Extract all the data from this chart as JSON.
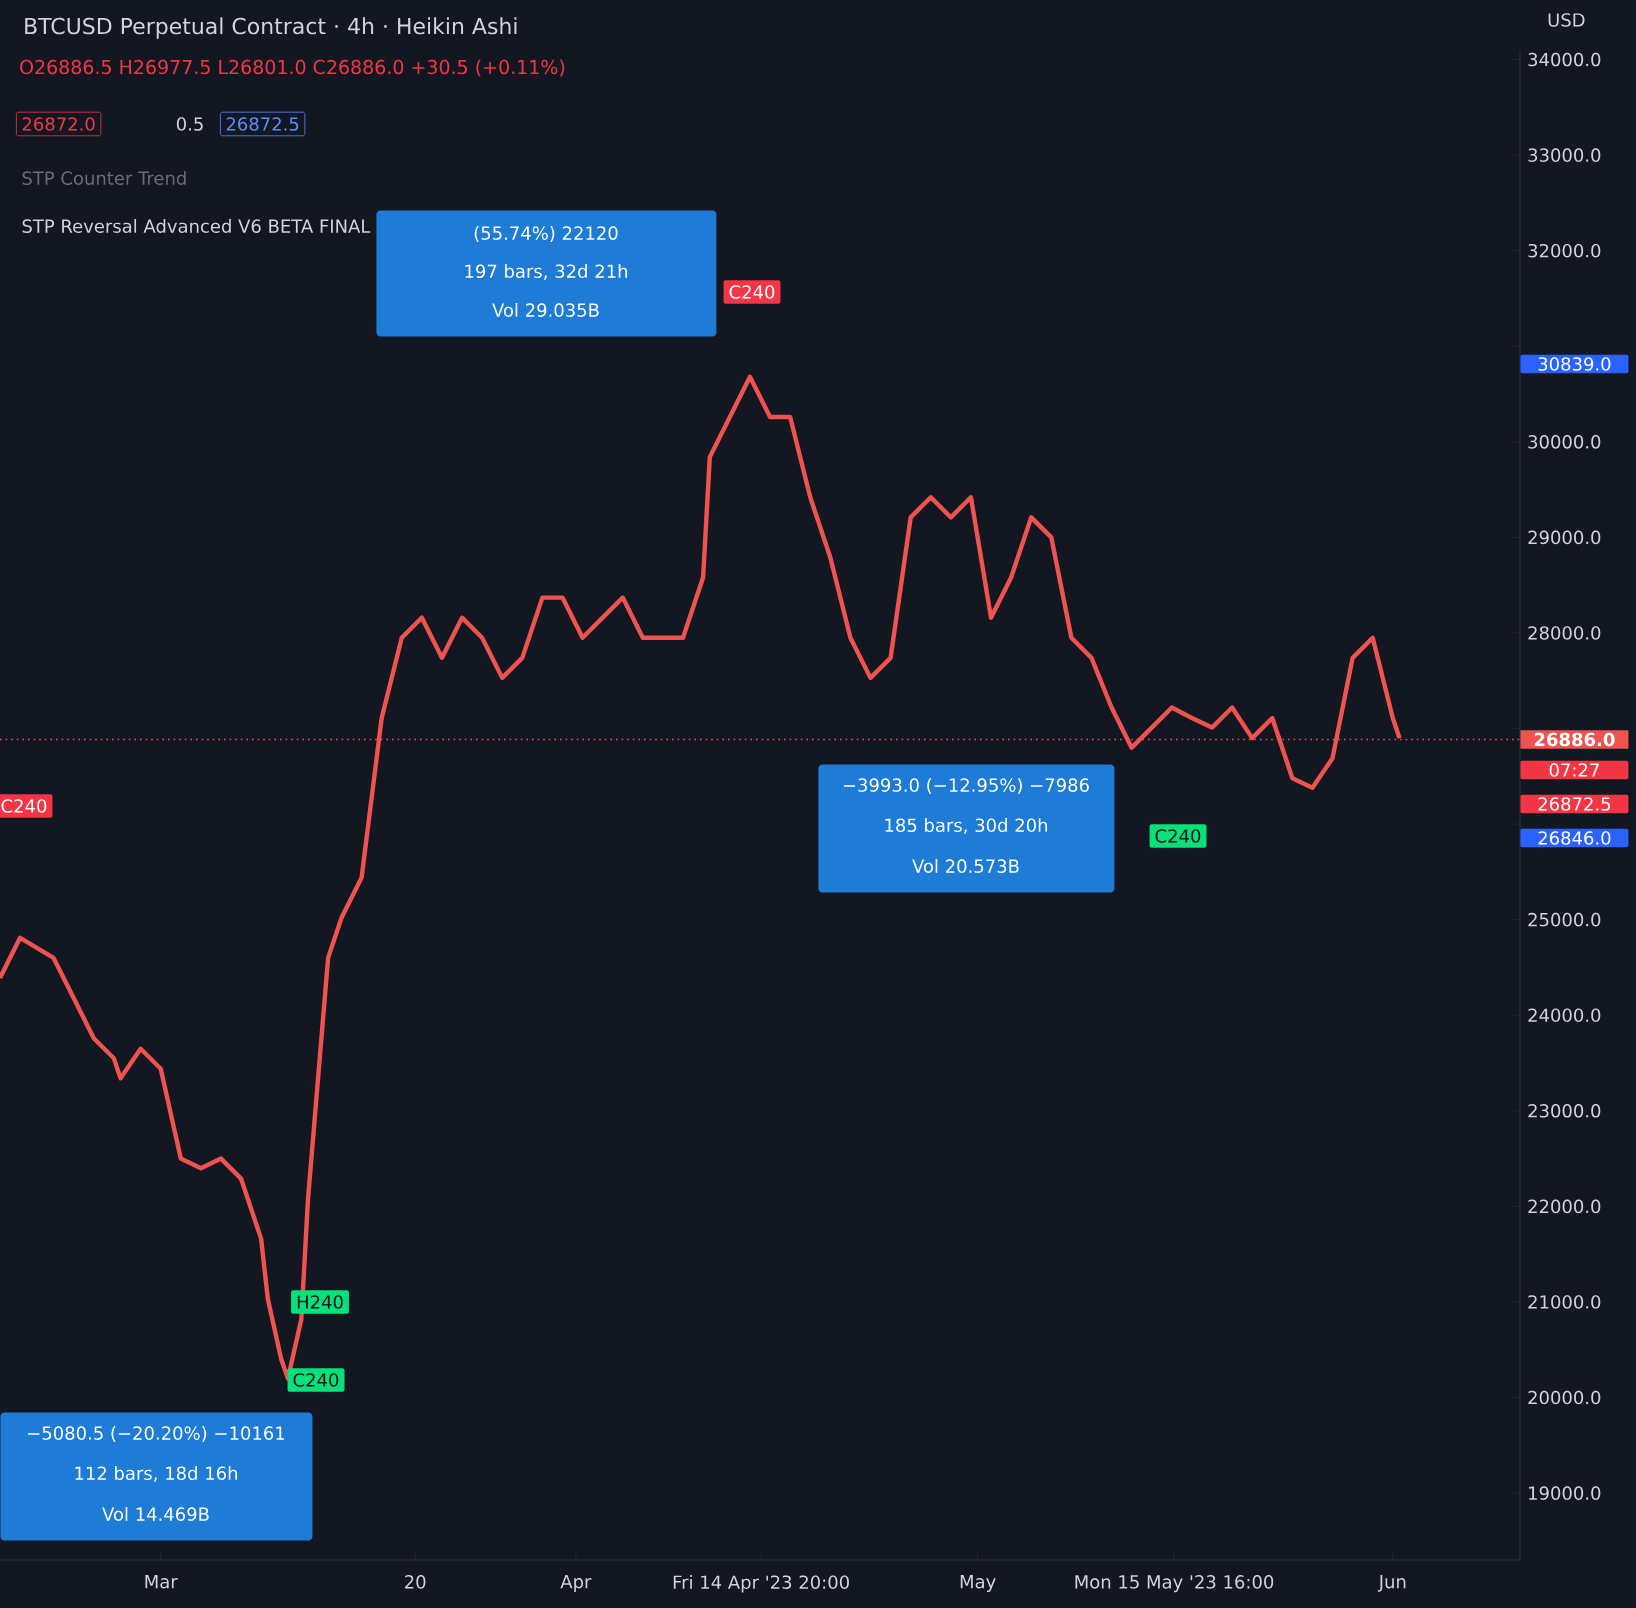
{
  "chart_data": {
    "type": "line",
    "title": "BTCUSD Perpetual Contract · 4h · Heikin Ashi",
    "subtitle": "O26886.5 H26977.5 L26801.0 C26886.0 +30.5 (+0.11%)",
    "ylabel": "USD",
    "x": [
      "2023-02-17T00:00",
      "2023-02-18T12:00",
      "2023-02-21T00:00",
      "2023-02-22T12:00",
      "2023-02-24T00:00",
      "2023-02-25T12:00",
      "2023-02-26T00:00",
      "2023-02-27T12:00",
      "2023-03-01T00:00",
      "2023-03-02T12:00",
      "2023-03-04T00:00",
      "2023-03-05T12:00",
      "2023-03-07T00:00",
      "2023-03-07T12:00",
      "2023-03-08T12:00",
      "2023-03-09T00:00",
      "2023-03-10T00:00",
      "2023-03-10T12:00",
      "2023-03-11T12:00",
      "2023-03-12T00:00",
      "2023-03-13T00:00",
      "2023-03-13T12:00",
      "2023-03-14T12:00",
      "2023-03-16T00:00",
      "2023-03-17T12:00",
      "2023-03-19T00:00",
      "2023-03-20T12:00",
      "2023-03-22T00:00",
      "2023-03-23T12:00",
      "2023-03-25T00:00",
      "2023-03-26T12:00",
      "2023-03-28T00:00",
      "2023-03-29T12:00",
      "2023-03-31T00:00",
      "2023-04-01T12:00",
      "2023-04-03T00:00",
      "2023-04-04T12:00",
      "2023-04-06T00:00",
      "2023-04-07T12:00",
      "2023-04-09T00:00",
      "2023-04-10T12:00",
      "2023-04-11T00:00",
      "2023-04-12T12:00",
      "2023-04-14T00:00",
      "2023-04-15T12:00",
      "2023-04-17T00:00",
      "2023-04-18T12:00",
      "2023-04-20T00:00",
      "2023-04-21T12:00",
      "2023-04-23T00:00",
      "2023-04-24T12:00",
      "2023-04-26T00:00",
      "2023-04-27T12:00",
      "2023-04-29T00:00",
      "2023-04-30T12:00",
      "2023-05-02T00:00",
      "2023-05-03T12:00",
      "2023-05-05T00:00",
      "2023-05-06T12:00",
      "2023-05-08T00:00",
      "2023-05-09T12:00",
      "2023-05-11T00:00",
      "2023-05-12T12:00",
      "2023-05-14T00:00",
      "2023-05-15T12:00",
      "2023-05-17T00:00",
      "2023-05-18T12:00",
      "2023-05-20T00:00",
      "2023-05-21T12:00",
      "2023-05-23T00:00",
      "2023-05-24T12:00",
      "2023-05-26T00:00",
      "2023-05-27T12:00",
      "2023-05-29T00:00",
      "2023-05-30T12:00",
      "2023-06-01T00:00",
      "2023-06-01T12:00"
    ],
    "series": [
      {
        "color": "#ef5350",
        "values": [
          24390,
          24810,
          24600,
          24180,
          23760,
          23550,
          23340,
          23650,
          23440,
          22500,
          22400,
          22500,
          22290,
          22080,
          21660,
          21030,
          20400,
          20200,
          20820,
          22080,
          23760,
          24600,
          25020,
          25440,
          27110,
          27950,
          28160,
          27740,
          28160,
          27950,
          27530,
          27740,
          28370,
          28370,
          27950,
          28160,
          28370,
          27950,
          27950,
          27950,
          28580,
          29840,
          30260,
          30680,
          30260,
          30260,
          29420,
          28790,
          27950,
          27530,
          27740,
          29210,
          29420,
          29210,
          29420,
          28160,
          28580,
          29210,
          29000,
          27950,
          27740,
          27220,
          26800,
          27010,
          27220,
          27110,
          27010,
          27220,
          26900,
          27110,
          26480,
          26380,
          26690,
          27740,
          27950,
          27110,
          26900
        ]
      }
    ],
    "xlim": [
      "2023-02-17T00:00",
      "2023-06-10T12:00"
    ],
    "xticks": [
      {
        "value": "2023-03-01T00:00",
        "label": "Mar"
      },
      {
        "value": "2023-03-20T00:00",
        "label": "20"
      },
      {
        "value": "2023-04-01T00:00",
        "label": "Apr"
      },
      {
        "value": "2023-04-14T20:00",
        "label": "Fri 14 Apr '23  20:00"
      },
      {
        "value": "2023-05-01T00:00",
        "label": "May"
      },
      {
        "value": "2023-05-15T16:00",
        "label": "Mon 15 May '23  16:00"
      },
      {
        "value": "2023-06-01T00:00",
        "label": "Jun"
      }
    ],
    "ylim": [
      18300,
      34100
    ],
    "yticks": [
      {
        "value": 19000,
        "label": "19000.0"
      },
      {
        "value": 20000,
        "label": "20000.0"
      },
      {
        "value": 21000,
        "label": "21000.0"
      },
      {
        "value": 22000,
        "label": "22000.0"
      },
      {
        "value": 23000,
        "label": "23000.0"
      },
      {
        "value": 24000,
        "label": "24000.0"
      },
      {
        "value": 25000,
        "label": "25000.0"
      },
      {
        "value": 26000,
        "label": null
      },
      {
        "value": 27000,
        "label": null
      },
      {
        "value": 28000,
        "label": "28000.0"
      },
      {
        "value": 29000,
        "label": "29000.0"
      },
      {
        "value": 30000,
        "label": "30000.0"
      },
      {
        "value": 31000,
        "label": null
      },
      {
        "value": 32000,
        "label": "32000.0"
      },
      {
        "value": 33000,
        "label": "33000.0"
      },
      {
        "value": 34000,
        "label": "34000.0"
      }
    ],
    "ref_lines": [
      {
        "axis": "y",
        "value": 26886.0,
        "label": "26886.0",
        "color": "#ef5350",
        "line_style": "dotted"
      }
    ],
    "marker": "none",
    "line_style": "solid",
    "grid": false,
    "annotations": [
      "26872.0",
      "0.5",
      "26872.5",
      "STP Counter Trend",
      "STP Reversal Advanced V6 BETA FINAL",
      "30839.0",
      "07:27",
      "26872.5",
      "26846.0",
      "C240",
      "C240",
      "H240",
      "C240",
      "C240",
      "−5080.5 (−20.20%) −10161",
      "112 bars, 18d 16h",
      "Vol 14.469B",
      "(55.74%) 22120",
      "197 bars, 32d 21h",
      "Vol 29.035B",
      "−3993.0 (−12.95%) −7986",
      "185 bars, 30d 20h",
      "Vol 20.573B"
    ]
  }
}
